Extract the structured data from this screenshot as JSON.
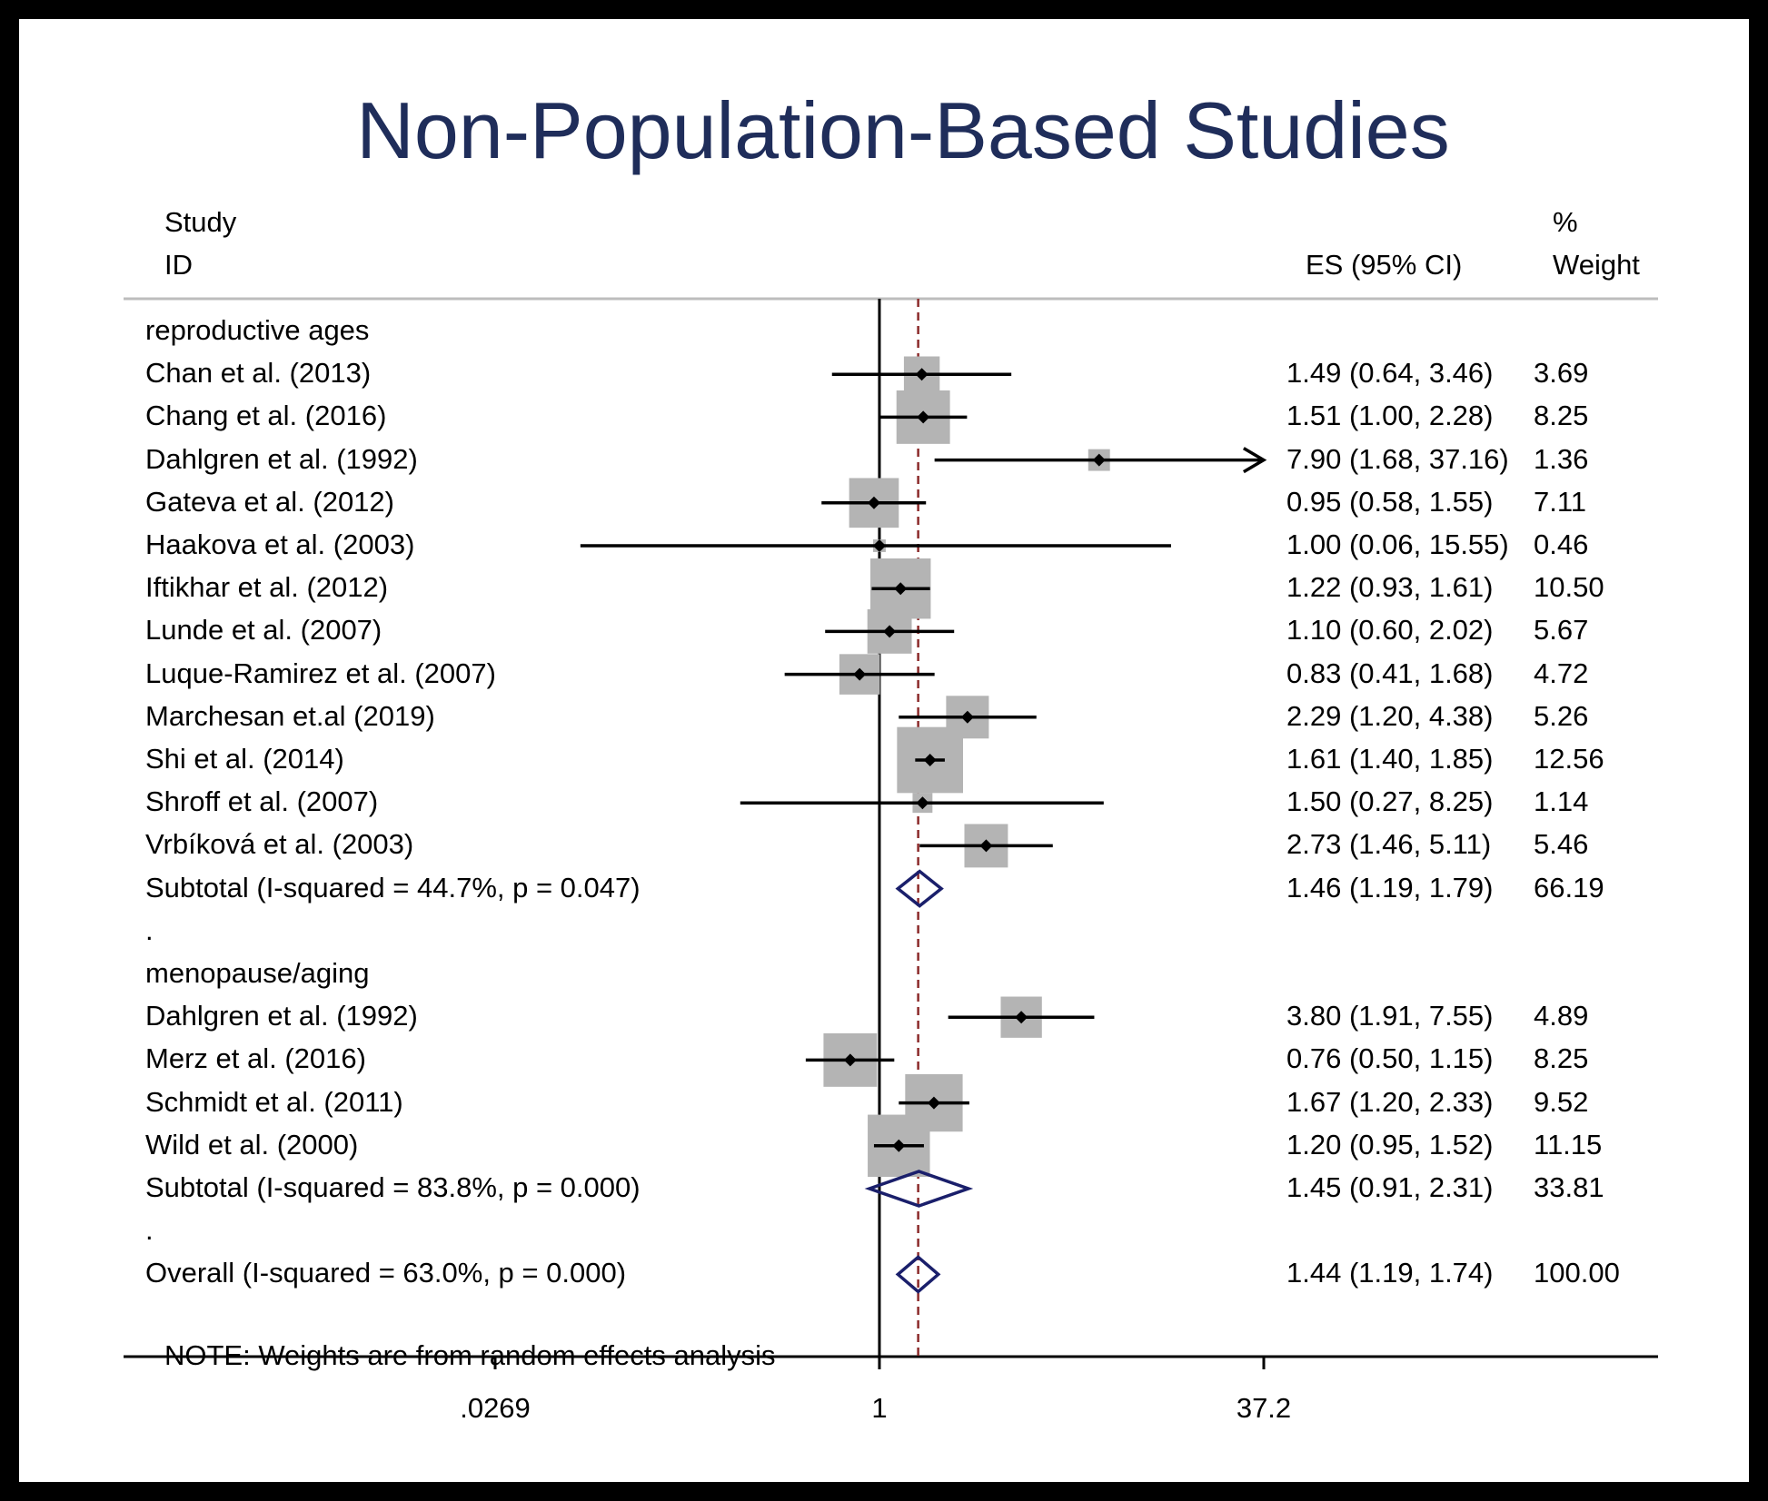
{
  "title": "Non-Population-Based Studies",
  "header": {
    "study_line1": "Study",
    "study_line2": "ID",
    "es_label": "ES (95% CI)",
    "weight_line1": "%",
    "weight_line2": "Weight"
  },
  "note": "NOTE: Weights are from random effects analysis",
  "colors": {
    "title": "#1f2d5a",
    "box": "#b4b4b4",
    "diamond": "#1a1f6b",
    "dashed": "#8b2a2a",
    "line": "#000000"
  },
  "chart_data": {
    "type": "forest",
    "x_scale": "log",
    "xlim": [
      0.0269,
      37.2
    ],
    "x_ticks": [
      {
        "value": 0.0269,
        "label": ".0269"
      },
      {
        "value": 1,
        "label": "1"
      },
      {
        "value": 37.2,
        "label": "37.2"
      }
    ],
    "null_line": 1,
    "overall_line": 1.44,
    "rows": [
      {
        "kind": "group",
        "label": "reproductive ages"
      },
      {
        "kind": "study",
        "label": "Chan et al. (2013)",
        "es": 1.49,
        "lo": 0.64,
        "hi": 3.46,
        "es_text": "1.49 (0.64, 3.46)",
        "weight": 3.69,
        "weight_text": "3.69"
      },
      {
        "kind": "study",
        "label": "Chang et al. (2016)",
        "es": 1.51,
        "lo": 1.0,
        "hi": 2.28,
        "es_text": "1.51 (1.00, 2.28)",
        "weight": 8.25,
        "weight_text": "8.25"
      },
      {
        "kind": "study",
        "label": "Dahlgren et al. (1992)",
        "es": 7.9,
        "lo": 1.68,
        "hi": 37.16,
        "es_text": "7.90 (1.68, 37.16)",
        "weight": 1.36,
        "weight_text": "1.36",
        "arrow": true
      },
      {
        "kind": "study",
        "label": "Gateva et al. (2012)",
        "es": 0.95,
        "lo": 0.58,
        "hi": 1.55,
        "es_text": "0.95 (0.58, 1.55)",
        "weight": 7.11,
        "weight_text": "7.11"
      },
      {
        "kind": "study",
        "label": "Haakova et al. (2003)",
        "es": 1.0,
        "lo": 0.06,
        "hi": 15.55,
        "es_text": "1.00 (0.06, 15.55)",
        "weight": 0.46,
        "weight_text": "0.46"
      },
      {
        "kind": "study",
        "label": "Iftikhar et al. (2012)",
        "es": 1.22,
        "lo": 0.93,
        "hi": 1.61,
        "es_text": "1.22 (0.93, 1.61)",
        "weight": 10.5,
        "weight_text": "10.50"
      },
      {
        "kind": "study",
        "label": "Lunde et al. (2007)",
        "es": 1.1,
        "lo": 0.6,
        "hi": 2.02,
        "es_text": "1.10 (0.60, 2.02)",
        "weight": 5.67,
        "weight_text": "5.67"
      },
      {
        "kind": "study",
        "label": "Luque-Ramirez et al. (2007)",
        "es": 0.83,
        "lo": 0.41,
        "hi": 1.68,
        "es_text": "0.83 (0.41, 1.68)",
        "weight": 4.72,
        "weight_text": "4.72"
      },
      {
        "kind": "study",
        "label": "Marchesan et.al (2019)",
        "es": 2.29,
        "lo": 1.2,
        "hi": 4.38,
        "es_text": "2.29 (1.20, 4.38)",
        "weight": 5.26,
        "weight_text": "5.26"
      },
      {
        "kind": "study",
        "label": "Shi et al. (2014)",
        "es": 1.61,
        "lo": 1.4,
        "hi": 1.85,
        "es_text": "1.61 (1.40, 1.85)",
        "weight": 12.56,
        "weight_text": "12.56"
      },
      {
        "kind": "study",
        "label": "Shroff et al. (2007)",
        "es": 1.5,
        "lo": 0.27,
        "hi": 8.25,
        "es_text": "1.50 (0.27, 8.25)",
        "weight": 1.14,
        "weight_text": "1.14"
      },
      {
        "kind": "study",
        "label": "Vrbíková et al. (2003)",
        "es": 2.73,
        "lo": 1.46,
        "hi": 5.11,
        "es_text": "2.73 (1.46, 5.11)",
        "weight": 5.46,
        "weight_text": "5.46"
      },
      {
        "kind": "subtotal",
        "label": "Subtotal  (I-squared = 44.7%, p = 0.047)",
        "es": 1.46,
        "lo": 1.19,
        "hi": 1.79,
        "es_text": "1.46 (1.19, 1.79)",
        "weight": 66.19,
        "weight_text": "66.19"
      },
      {
        "kind": "spacer",
        "label": "."
      },
      {
        "kind": "group",
        "label": "menopause/aging"
      },
      {
        "kind": "study",
        "label": "Dahlgren et al. (1992)",
        "es": 3.8,
        "lo": 1.91,
        "hi": 7.55,
        "es_text": "3.80 (1.91, 7.55)",
        "weight": 4.89,
        "weight_text": "4.89"
      },
      {
        "kind": "study",
        "label": "Merz et al. (2016)",
        "es": 0.76,
        "lo": 0.5,
        "hi": 1.15,
        "es_text": "0.76 (0.50, 1.15)",
        "weight": 8.25,
        "weight_text": "8.25"
      },
      {
        "kind": "study",
        "label": "Schmidt et al. (2011)",
        "es": 1.67,
        "lo": 1.2,
        "hi": 2.33,
        "es_text": "1.67 (1.20, 2.33)",
        "weight": 9.52,
        "weight_text": "9.52"
      },
      {
        "kind": "study",
        "label": "Wild et al. (2000)",
        "es": 1.2,
        "lo": 0.95,
        "hi": 1.52,
        "es_text": "1.20 (0.95, 1.52)",
        "weight": 11.15,
        "weight_text": "11.15"
      },
      {
        "kind": "subtotal",
        "label": "Subtotal  (I-squared = 83.8%, p = 0.000)",
        "es": 1.45,
        "lo": 0.91,
        "hi": 2.31,
        "es_text": "1.45 (0.91, 2.31)",
        "weight": 33.81,
        "weight_text": "33.81"
      },
      {
        "kind": "spacer",
        "label": "."
      },
      {
        "kind": "overall",
        "label": "Overall  (I-squared = 63.0%, p = 0.000)",
        "es": 1.44,
        "lo": 1.19,
        "hi": 1.74,
        "es_text": "1.44 (1.19, 1.74)",
        "weight": 100.0,
        "weight_text": "100.00"
      }
    ]
  }
}
